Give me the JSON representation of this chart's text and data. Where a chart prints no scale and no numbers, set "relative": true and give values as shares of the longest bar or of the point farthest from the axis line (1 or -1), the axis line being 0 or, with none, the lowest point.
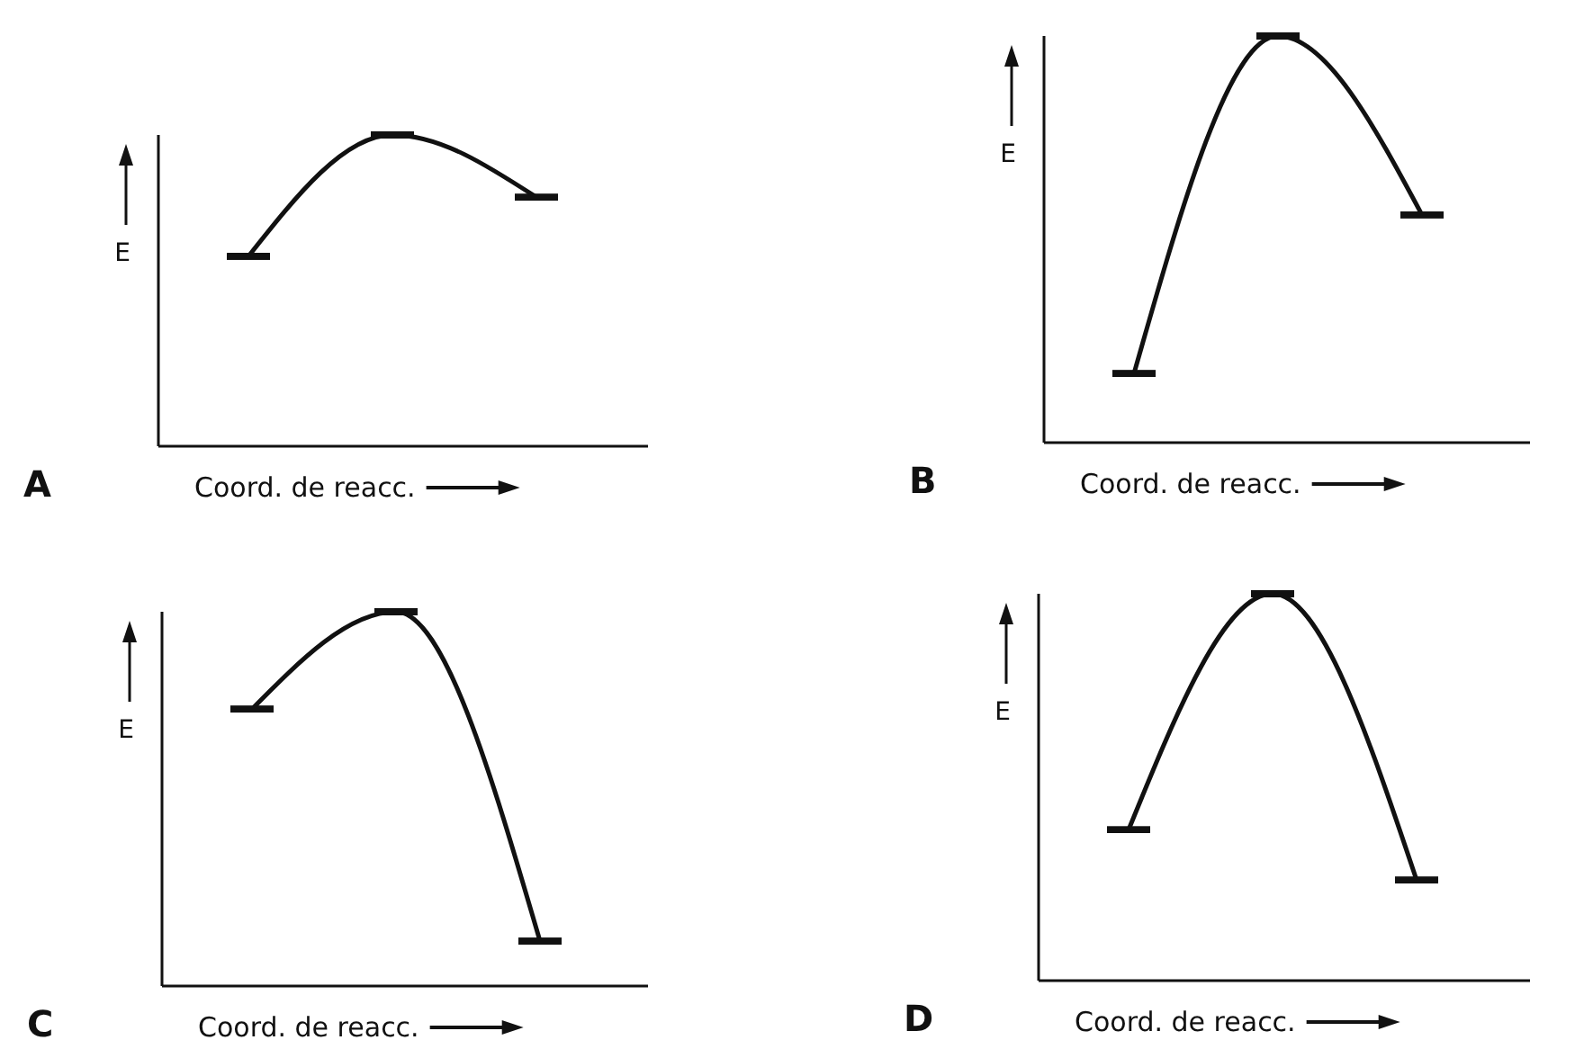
{
  "chart_data": [
    {
      "type": "line",
      "title": "A",
      "xlabel": "Coord. de reacc.",
      "ylabel": "E",
      "categories": [
        null,
        null,
        null
      ],
      "relative": true,
      "series": [
        {
          "color": "#111111",
          "values": [
            0.61,
            1,
            0.8
          ]
        }
      ]
    },
    {
      "type": "line",
      "title": "B",
      "xlabel": "Coord. de reacc.",
      "ylabel": "E",
      "categories": [
        null,
        null,
        null
      ],
      "relative": true,
      "series": [
        {
          "color": "#111111",
          "values": [
            0.17,
            1,
            0.56
          ]
        }
      ]
    },
    {
      "type": "line",
      "title": "C",
      "xlabel": "Coord. de reacc.",
      "ylabel": "E",
      "categories": [
        null,
        null,
        null
      ],
      "relative": true,
      "series": [
        {
          "color": "#111111",
          "values": [
            0.74,
            1,
            0.12
          ]
        }
      ]
    },
    {
      "type": "line",
      "title": "D",
      "xlabel": "Coord. de reacc.",
      "ylabel": "E",
      "categories": [
        null,
        null,
        null
      ],
      "relative": true,
      "series": [
        {
          "color": "#111111",
          "values": [
            0.39,
            1,
            0.26
          ]
        }
      ]
    }
  ]
}
